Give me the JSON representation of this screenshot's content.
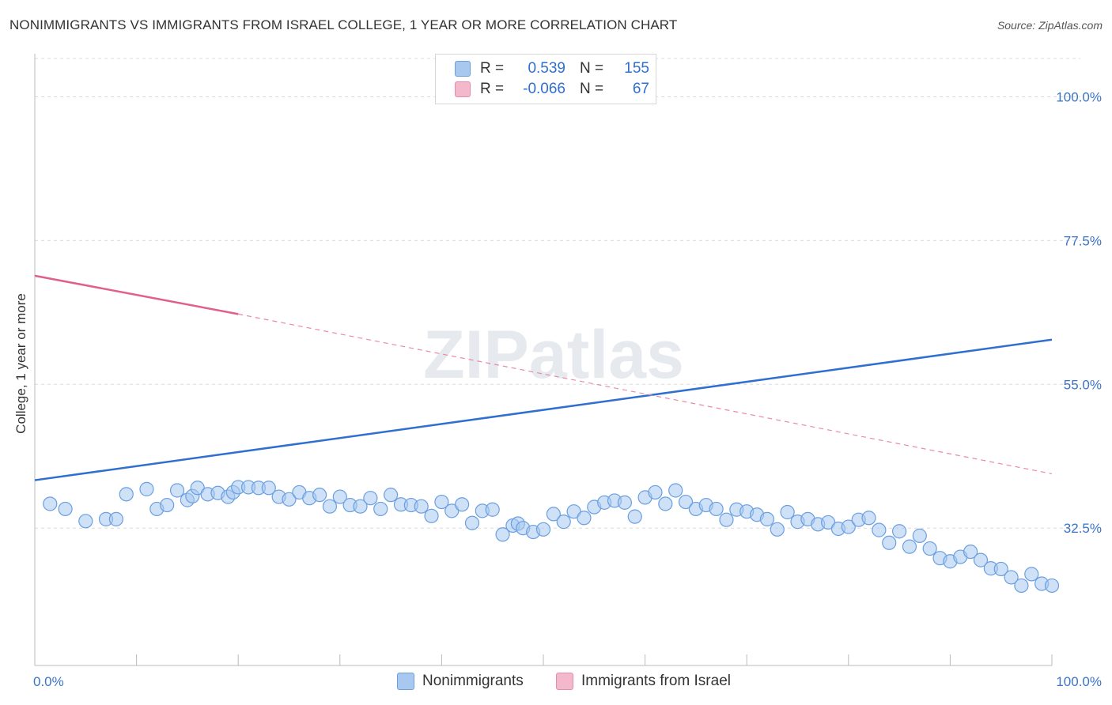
{
  "title": "NONIMMIGRANTS VS IMMIGRANTS FROM ISRAEL COLLEGE, 1 YEAR OR MORE CORRELATION CHART",
  "source": "Source: ZipAtlas.com",
  "watermark": "ZIPatlas",
  "legend_top": {
    "rows": [
      {
        "r_label": "R =",
        "r_value": "0.539",
        "n_label": "N =",
        "n_value": "155",
        "color": "#a8c8f0"
      },
      {
        "r_label": "R =",
        "r_value": "-0.066",
        "n_label": "N =",
        "n_value": "67",
        "color": "#f4b8cc"
      }
    ]
  },
  "legend_bottom": {
    "items": [
      {
        "label": "Nonimmigrants",
        "color": "#a8c8f0"
      },
      {
        "label": "Immigrants from Israel",
        "color": "#f4b8cc"
      }
    ]
  },
  "chart_data": {
    "type": "scatter",
    "title": "NONIMMIGRANTS VS IMMIGRANTS FROM ISRAEL COLLEGE, 1 YEAR OR MORE CORRELATION CHART",
    "xlabel": "",
    "ylabel": "College, 1 year or more",
    "xlim": [
      0,
      100
    ],
    "ylim": [
      11,
      106
    ],
    "x_tick_labels": [
      {
        "value": 0,
        "label": "0.0%"
      },
      {
        "value": 100,
        "label": "100.0%"
      }
    ],
    "y_tick_labels": [
      {
        "value": 32.5,
        "label": "32.5%"
      },
      {
        "value": 55.0,
        "label": "55.0%"
      },
      {
        "value": 77.5,
        "label": "77.5%"
      },
      {
        "value": 100.0,
        "label": "100.0%"
      }
    ],
    "grid": true,
    "legend_placement": "top-center",
    "series": [
      {
        "name": "Nonimmigrants",
        "color": "#a8c8f0",
        "stroke": "#6a9fe0",
        "trend": {
          "x": [
            0,
            100
          ],
          "y": [
            40.0,
            62.0
          ],
          "color": "#2f6fd0"
        },
        "points": [
          [
            1.5,
            36.3
          ],
          [
            3,
            35.5
          ],
          [
            5,
            33.6
          ],
          [
            7,
            33.9
          ],
          [
            8,
            33.9
          ],
          [
            9,
            37.8
          ],
          [
            11,
            38.6
          ],
          [
            12,
            35.5
          ],
          [
            13,
            36.1
          ],
          [
            14,
            38.4
          ],
          [
            15,
            36.9
          ],
          [
            15.5,
            37.5
          ],
          [
            16,
            38.8
          ],
          [
            17,
            37.8
          ],
          [
            18,
            38.0
          ],
          [
            19,
            37.4
          ],
          [
            19.5,
            38.1
          ],
          [
            20,
            38.9
          ],
          [
            21,
            38.9
          ],
          [
            22,
            38.8
          ],
          [
            23,
            38.8
          ],
          [
            24,
            37.4
          ],
          [
            25,
            37.0
          ],
          [
            26,
            38.1
          ],
          [
            27,
            37.2
          ],
          [
            28,
            37.7
          ],
          [
            29,
            35.9
          ],
          [
            30,
            37.4
          ],
          [
            31,
            36.1
          ],
          [
            32,
            35.9
          ],
          [
            33,
            37.2
          ],
          [
            34,
            35.5
          ],
          [
            35,
            37.7
          ],
          [
            36,
            36.2
          ],
          [
            37,
            36.1
          ],
          [
            38,
            35.9
          ],
          [
            39,
            34.4
          ],
          [
            40,
            36.6
          ],
          [
            41,
            35.2
          ],
          [
            42,
            36.2
          ],
          [
            43,
            33.3
          ],
          [
            44,
            35.2
          ],
          [
            45,
            35.4
          ],
          [
            46,
            31.5
          ],
          [
            47,
            32.9
          ],
          [
            47.5,
            33.2
          ],
          [
            48,
            32.5
          ],
          [
            49,
            31.9
          ],
          [
            50,
            32.3
          ],
          [
            51,
            34.7
          ],
          [
            52,
            33.5
          ],
          [
            53,
            35.1
          ],
          [
            54,
            34.1
          ],
          [
            55,
            35.8
          ],
          [
            56,
            36.5
          ],
          [
            57,
            36.8
          ],
          [
            58,
            36.5
          ],
          [
            59,
            34.3
          ],
          [
            60,
            37.3
          ],
          [
            61,
            38.1
          ],
          [
            62,
            36.3
          ],
          [
            63,
            38.4
          ],
          [
            64,
            36.6
          ],
          [
            65,
            35.5
          ],
          [
            66,
            36.1
          ],
          [
            67,
            35.5
          ],
          [
            68,
            33.8
          ],
          [
            69,
            35.4
          ],
          [
            70,
            35.1
          ],
          [
            71,
            34.6
          ],
          [
            72,
            33.9
          ],
          [
            73,
            32.3
          ],
          [
            74,
            35.0
          ],
          [
            75,
            33.5
          ],
          [
            76,
            33.9
          ],
          [
            77,
            33.1
          ],
          [
            78,
            33.4
          ],
          [
            79,
            32.4
          ],
          [
            80,
            32.7
          ],
          [
            81,
            33.8
          ],
          [
            82,
            34.1
          ],
          [
            83,
            32.2
          ],
          [
            84,
            30.2
          ],
          [
            85,
            32.0
          ],
          [
            86,
            29.6
          ],
          [
            87,
            31.3
          ],
          [
            88,
            29.3
          ],
          [
            89,
            27.8
          ],
          [
            90,
            27.3
          ],
          [
            91,
            28.0
          ],
          [
            92,
            28.8
          ],
          [
            93,
            27.5
          ],
          [
            94,
            26.2
          ],
          [
            95,
            26.1
          ],
          [
            96,
            24.8
          ],
          [
            97,
            23.5
          ],
          [
            98,
            25.3
          ],
          [
            99,
            23.8
          ],
          [
            100,
            23.5
          ]
        ]
      },
      {
        "name": "Immigrants from Israel",
        "color": "#f4b8cc",
        "stroke": "#e88aa8",
        "trend": {
          "x": [
            0,
            20
          ],
          "y": [
            72.0,
            66.0
          ],
          "color": "#e0608a"
        },
        "trend_dashed": {
          "x": [
            20,
            100
          ],
          "y": [
            66.0,
            41.0
          ],
          "color": "#e88aa8"
        }
      }
    ]
  }
}
